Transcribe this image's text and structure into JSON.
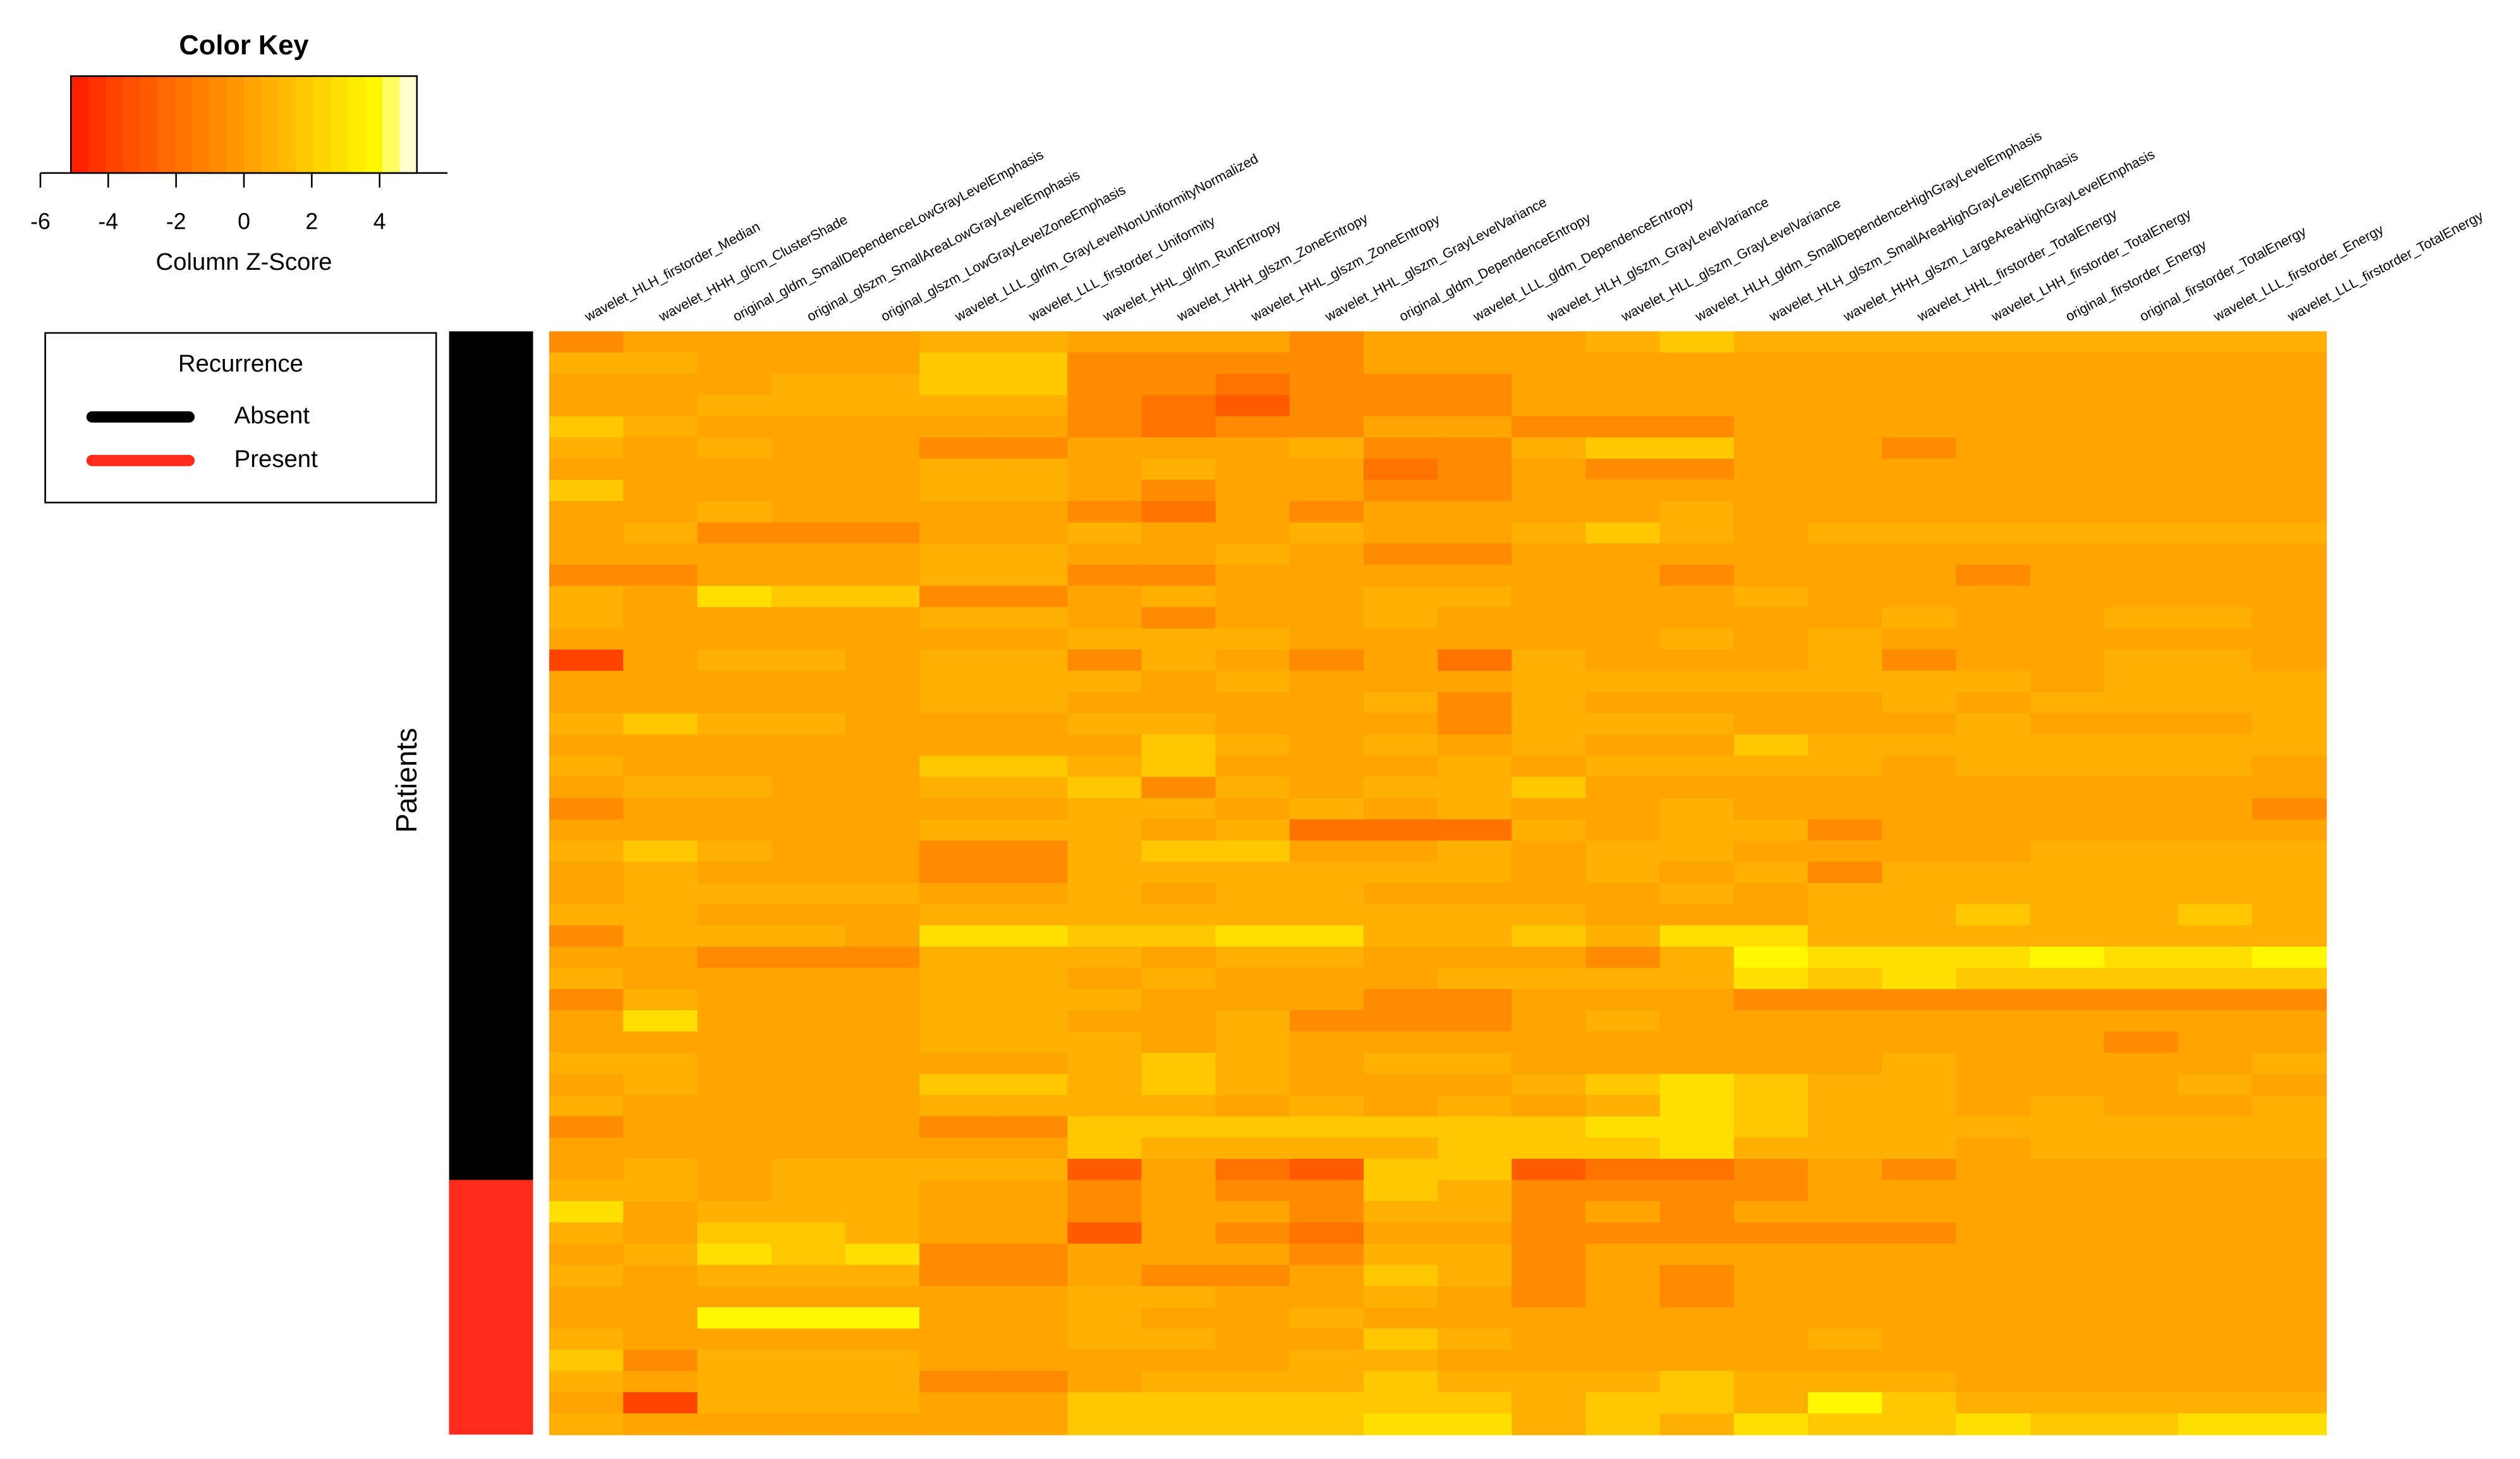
{
  "chart_data": {
    "type": "heatmap",
    "ylabel": "Patients",
    "columns": [
      "wavelet_HLH_firstorder_Median",
      "wavelet_HHH_glcm_ClusterShade",
      "original_gldm_SmallDependenceLowGrayLevelEmphasis",
      "original_glszm_SmallAreaLowGrayLevelEmphasis",
      "original_glszm_LowGrayLevelZoneEmphasis",
      "wavelet_LLL_glrlm_GrayLevelNonUniformityNormalized",
      "wavelet_LLL_firstorder_Uniformity",
      "wavelet_HHL_glrlm_RunEntropy",
      "wavelet_HHH_glszm_ZoneEntropy",
      "wavelet_HHL_glszm_ZoneEntropy",
      "wavelet_HHL_glszm_GrayLevelVariance",
      "original_gldm_DependenceEntropy",
      "wavelet_LLL_gldm_DependenceEntropy",
      "wavelet_HLH_glszm_GrayLevelVariance",
      "wavelet_HLL_glszm_GrayLevelVariance",
      "wavelet_HLH_gldm_SmallDependenceHighGrayLevelEmphasis",
      "wavelet_HLH_glszm_SmallAreaHighGrayLevelEmphasis",
      "wavelet_HHH_glszm_LargeAreaHighGrayLevelEmphasis",
      "wavelet_HHL_firstorder_TotalEnergy",
      "wavelet_LHH_firstorder_TotalEnergy",
      "original_firstorder_Energy",
      "original_firstorder_TotalEnergy",
      "wavelet_LLL_firstorder_Energy",
      "wavelet_LLL_firstorder_TotalEnergy"
    ],
    "values": [
      [
        -1,
        0,
        0,
        0,
        0,
        1,
        1,
        0,
        0,
        0,
        -1,
        0,
        0,
        0,
        1,
        2,
        1,
        1,
        1,
        1,
        1,
        1,
        1,
        1
      ],
      [
        1,
        1,
        0,
        0,
        0,
        2,
        2,
        -1,
        -1,
        -1,
        -1,
        0,
        0,
        0,
        0,
        0,
        0,
        0,
        0,
        0,
        0,
        0,
        0,
        0
      ],
      [
        0,
        0,
        0,
        1,
        1,
        2,
        2,
        -1,
        -1,
        -2,
        -1,
        -1,
        -1,
        0,
        0,
        0,
        0,
        0,
        0,
        0,
        0,
        0,
        0,
        0
      ],
      [
        0,
        0,
        1,
        1,
        1,
        1,
        1,
        -1,
        -2,
        -3,
        -1,
        -1,
        -1,
        0,
        0,
        0,
        0,
        0,
        0,
        0,
        0,
        0,
        0,
        0
      ],
      [
        2,
        1,
        0,
        0,
        0,
        0,
        0,
        -1,
        -2,
        -1,
        -1,
        0,
        0,
        -1,
        -1,
        -1,
        0,
        0,
        0,
        0,
        0,
        0,
        0,
        0
      ],
      [
        1,
        0,
        1,
        0,
        0,
        -1,
        -1,
        0,
        0,
        0,
        1,
        -1,
        -1,
        1,
        2,
        2,
        0,
        0,
        -1,
        0,
        0,
        0,
        0,
        0
      ],
      [
        0,
        0,
        0,
        0,
        0,
        1,
        1,
        0,
        1,
        0,
        0,
        -2,
        -1,
        0,
        -1,
        -1,
        0,
        0,
        0,
        0,
        0,
        0,
        0,
        0
      ],
      [
        2,
        0,
        0,
        0,
        0,
        1,
        1,
        0,
        -1,
        0,
        0,
        -1,
        -1,
        0,
        0,
        0,
        0,
        0,
        0,
        0,
        0,
        0,
        0,
        0
      ],
      [
        0,
        0,
        1,
        0,
        0,
        0,
        0,
        -1,
        -2,
        0,
        -1,
        0,
        0,
        0,
        0,
        1,
        0,
        0,
        0,
        0,
        0,
        0,
        0,
        0
      ],
      [
        0,
        1,
        -1,
        -1,
        -1,
        0,
        0,
        1,
        0,
        0,
        1,
        0,
        0,
        1,
        2,
        1,
        0,
        1,
        1,
        1,
        1,
        1,
        1,
        1
      ],
      [
        0,
        0,
        0,
        0,
        0,
        1,
        1,
        0,
        0,
        1,
        0,
        -1,
        -1,
        0,
        0,
        0,
        0,
        0,
        0,
        0,
        0,
        0,
        0,
        0
      ],
      [
        -1,
        -1,
        0,
        0,
        0,
        1,
        1,
        -1,
        -1,
        0,
        0,
        0,
        0,
        0,
        0,
        -1,
        0,
        0,
        0,
        -1,
        0,
        0,
        0,
        0
      ],
      [
        1,
        0,
        3,
        2,
        2,
        -1,
        -1,
        0,
        1,
        0,
        0,
        1,
        1,
        0,
        0,
        0,
        1,
        0,
        0,
        0,
        0,
        0,
        0,
        0
      ],
      [
        1,
        0,
        0,
        0,
        0,
        1,
        1,
        0,
        -1,
        0,
        0,
        1,
        0,
        0,
        0,
        0,
        0,
        0,
        1,
        0,
        0,
        1,
        1,
        0
      ],
      [
        0,
        0,
        0,
        0,
        0,
        0,
        0,
        1,
        1,
        1,
        0,
        0,
        0,
        0,
        0,
        1,
        0,
        1,
        0,
        0,
        0,
        0,
        0,
        0
      ],
      [
        -4,
        0,
        1,
        1,
        0,
        1,
        1,
        -1,
        1,
        0,
        -1,
        0,
        -2,
        1,
        0,
        0,
        0,
        1,
        -1,
        0,
        0,
        1,
        1,
        0
      ],
      [
        0,
        0,
        0,
        0,
        0,
        1,
        1,
        1,
        0,
        1,
        0,
        0,
        0,
        1,
        1,
        1,
        1,
        1,
        1,
        1,
        0,
        1,
        1,
        1
      ],
      [
        0,
        0,
        0,
        0,
        0,
        1,
        1,
        0,
        0,
        0,
        0,
        1,
        -1,
        1,
        0,
        0,
        0,
        0,
        1,
        0,
        1,
        1,
        1,
        1
      ],
      [
        1,
        2,
        1,
        1,
        0,
        0,
        0,
        1,
        1,
        0,
        0,
        0,
        -1,
        1,
        1,
        1,
        0,
        0,
        0,
        1,
        0,
        0,
        0,
        1
      ],
      [
        0,
        0,
        0,
        0,
        0,
        0,
        0,
        0,
        2,
        1,
        0,
        1,
        0,
        1,
        0,
        0,
        2,
        1,
        1,
        1,
        1,
        1,
        1,
        1
      ],
      [
        1,
        0,
        0,
        0,
        0,
        2,
        2,
        1,
        2,
        0,
        0,
        0,
        1,
        0,
        1,
        1,
        1,
        1,
        0,
        1,
        1,
        1,
        1,
        0
      ],
      [
        0,
        1,
        1,
        0,
        0,
        1,
        1,
        2,
        -1,
        1,
        0,
        1,
        1,
        2,
        0,
        0,
        0,
        0,
        0,
        0,
        0,
        0,
        0,
        0
      ],
      [
        -1,
        0,
        0,
        0,
        0,
        0,
        0,
        1,
        1,
        0,
        1,
        0,
        1,
        0,
        0,
        1,
        0,
        0,
        0,
        0,
        0,
        0,
        0,
        -1
      ],
      [
        0,
        0,
        0,
        0,
        0,
        1,
        1,
        1,
        0,
        1,
        -2,
        -2,
        -2,
        1,
        0,
        1,
        1,
        -1,
        0,
        0,
        0,
        0,
        0,
        0
      ],
      [
        1,
        2,
        1,
        0,
        0,
        -1,
        -1,
        1,
        2,
        2,
        0,
        0,
        1,
        0,
        1,
        1,
        0,
        0,
        0,
        0,
        1,
        1,
        1,
        1
      ],
      [
        0,
        1,
        0,
        0,
        0,
        -1,
        -1,
        1,
        1,
        1,
        1,
        1,
        1,
        0,
        1,
        0,
        1,
        -1,
        1,
        1,
        1,
        1,
        1,
        1
      ],
      [
        0,
        1,
        1,
        1,
        1,
        0,
        0,
        1,
        0,
        1,
        1,
        0,
        0,
        0,
        0,
        1,
        0,
        1,
        1,
        1,
        1,
        1,
        1,
        1
      ],
      [
        1,
        1,
        0,
        0,
        0,
        1,
        1,
        1,
        1,
        1,
        1,
        1,
        1,
        1,
        0,
        0,
        0,
        1,
        1,
        2,
        1,
        1,
        2,
        1
      ],
      [
        -1,
        1,
        1,
        1,
        0,
        3,
        3,
        2,
        2,
        3,
        3,
        1,
        1,
        2,
        1,
        3,
        3,
        1,
        1,
        1,
        1,
        1,
        1,
        1
      ],
      [
        0,
        0,
        -1,
        -1,
        -1,
        1,
        1,
        1,
        0,
        1,
        1,
        0,
        0,
        0,
        -1,
        1,
        4,
        3,
        3,
        3,
        4,
        3,
        3,
        4
      ],
      [
        1,
        0,
        0,
        0,
        0,
        1,
        1,
        0,
        1,
        0,
        0,
        0,
        1,
        1,
        1,
        1,
        3,
        2,
        3,
        2,
        2,
        2,
        2,
        2
      ],
      [
        -1,
        1,
        0,
        0,
        0,
        1,
        1,
        1,
        0,
        0,
        0,
        -1,
        -1,
        0,
        0,
        0,
        -1,
        -1,
        -1,
        -1,
        -1,
        -1,
        -1,
        -1
      ],
      [
        0,
        3,
        0,
        0,
        0,
        1,
        1,
        0,
        0,
        1,
        -1,
        -1,
        -1,
        0,
        1,
        0,
        0,
        0,
        0,
        0,
        0,
        0,
        0,
        0
      ],
      [
        0,
        0,
        0,
        0,
        0,
        1,
        1,
        1,
        0,
        1,
        0,
        0,
        0,
        0,
        0,
        0,
        0,
        0,
        0,
        0,
        0,
        -1,
        0,
        0
      ],
      [
        1,
        1,
        0,
        0,
        0,
        0,
        0,
        1,
        2,
        1,
        0,
        1,
        1,
        0,
        0,
        0,
        0,
        0,
        1,
        0,
        0,
        0,
        0,
        1
      ],
      [
        0,
        1,
        0,
        0,
        0,
        2,
        2,
        1,
        2,
        1,
        0,
        0,
        0,
        1,
        2,
        3,
        2,
        1,
        1,
        0,
        0,
        0,
        1,
        0
      ],
      [
        1,
        0,
        0,
        0,
        0,
        1,
        1,
        1,
        1,
        0,
        1,
        0,
        1,
        0,
        1,
        3,
        2,
        1,
        1,
        0,
        1,
        0,
        0,
        1
      ],
      [
        -1,
        0,
        0,
        0,
        0,
        -1,
        -1,
        2,
        2,
        2,
        2,
        2,
        2,
        2,
        3,
        3,
        2,
        1,
        1,
        1,
        1,
        1,
        1,
        1
      ],
      [
        0,
        0,
        0,
        0,
        0,
        0,
        0,
        2,
        1,
        1,
        1,
        1,
        2,
        2,
        2,
        3,
        1,
        1,
        1,
        0,
        1,
        1,
        1,
        1
      ],
      [
        0,
        1,
        0,
        1,
        1,
        1,
        1,
        -3,
        0,
        -2,
        -3,
        2,
        2,
        -3,
        -2,
        -2,
        -1,
        0,
        -1,
        0,
        0,
        0,
        0,
        0
      ],
      [
        1,
        1,
        0,
        1,
        1,
        0,
        0,
        -1,
        0,
        -1,
        -1,
        2,
        1,
        -1,
        -1,
        -1,
        -1,
        0,
        0,
        0,
        0,
        0,
        0,
        0
      ],
      [
        3,
        0,
        1,
        1,
        1,
        0,
        0,
        -1,
        0,
        0,
        -1,
        1,
        1,
        -1,
        0,
        -1,
        0,
        0,
        0,
        0,
        0,
        0,
        0,
        0
      ],
      [
        1,
        0,
        2,
        2,
        1,
        0,
        0,
        -3,
        0,
        -1,
        -2,
        0,
        0,
        -1,
        -1,
        -1,
        -1,
        -1,
        -1,
        0,
        0,
        0,
        0,
        0
      ],
      [
        0,
        1,
        3,
        2,
        3,
        -1,
        -1,
        0,
        0,
        0,
        -1,
        1,
        1,
        -1,
        0,
        0,
        0,
        0,
        0,
        0,
        0,
        0,
        0,
        0
      ],
      [
        1,
        0,
        1,
        1,
        1,
        -1,
        -1,
        0,
        -1,
        -1,
        0,
        2,
        1,
        -1,
        0,
        -1,
        0,
        0,
        0,
        0,
        0,
        0,
        0,
        0
      ],
      [
        0,
        0,
        0,
        0,
        0,
        0,
        0,
        1,
        1,
        0,
        0,
        1,
        0,
        -1,
        0,
        -1,
        0,
        0,
        0,
        0,
        0,
        0,
        0,
        0
      ],
      [
        0,
        0,
        4,
        4,
        4,
        0,
        0,
        1,
        0,
        0,
        1,
        0,
        0,
        0,
        0,
        0,
        0,
        0,
        0,
        0,
        0,
        0,
        0,
        0
      ],
      [
        1,
        0,
        0,
        0,
        0,
        0,
        0,
        1,
        1,
        0,
        0,
        2,
        1,
        0,
        0,
        0,
        0,
        1,
        0,
        0,
        0,
        0,
        0,
        0
      ],
      [
        2,
        -1,
        1,
        1,
        1,
        0,
        0,
        0,
        0,
        0,
        1,
        1,
        0,
        0,
        0,
        0,
        0,
        0,
        0,
        0,
        0,
        0,
        0,
        0
      ],
      [
        1,
        0,
        1,
        1,
        1,
        -1,
        -1,
        0,
        1,
        1,
        1,
        2,
        1,
        1,
        1,
        2,
        1,
        1,
        1,
        0,
        0,
        0,
        0,
        0
      ],
      [
        0,
        -4,
        1,
        1,
        1,
        0,
        0,
        2,
        2,
        2,
        2,
        2,
        2,
        1,
        2,
        2,
        1,
        4,
        2,
        1,
        1,
        1,
        1,
        1
      ],
      [
        1,
        0,
        0,
        0,
        0,
        0,
        0,
        2,
        2,
        2,
        2,
        3,
        3,
        1,
        2,
        1,
        3,
        2,
        2,
        3,
        2,
        2,
        3,
        3
      ]
    ],
    "color_key": {
      "title": "Color Key",
      "xlabel": "Column Z-Score",
      "xlim": [
        -6,
        6
      ],
      "xticks": [
        -6,
        -4,
        -2,
        0,
        2,
        4
      ],
      "range": [
        -5.1,
        5.1
      ],
      "colors": [
        "#ff2200",
        "#ff3300",
        "#ff4400",
        "#ff5000",
        "#ff5c00",
        "#ff6800",
        "#ff7400",
        "#ff8000",
        "#ff8c00",
        "#ff9800",
        "#ffa400",
        "#ffb000",
        "#ffbc00",
        "#ffc800",
        "#ffd400",
        "#ffe000",
        "#ffec00",
        "#fff800",
        "#ffff60",
        "#ffffd0"
      ]
    },
    "row_groups": {
      "title": "Recurrence",
      "groups": [
        {
          "name": "Absent",
          "color": "#000000",
          "count": 40
        },
        {
          "name": "Present",
          "color": "#ff2a1a",
          "count": 12
        }
      ]
    }
  }
}
